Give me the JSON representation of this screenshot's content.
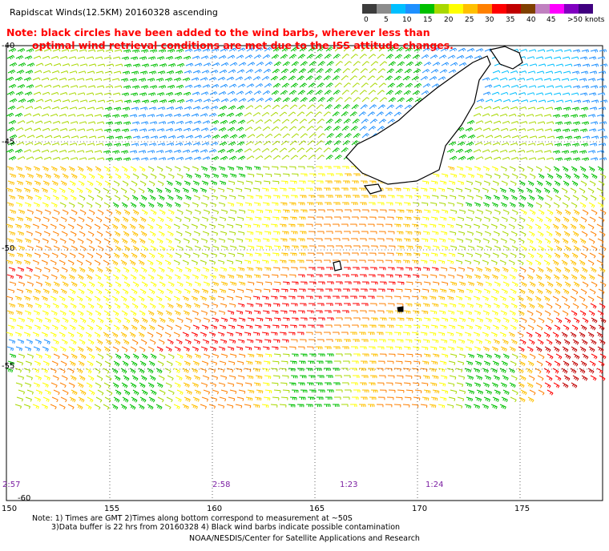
{
  "title": "Rapidscat Winds(12.5KM) 20160328 ascending",
  "note": {
    "line1": "Note: black circles have been added to the wind barbs, wherever less than",
    "line2": "optimal wind retrieval conditions are met due to the ISS attitude changes."
  },
  "scale": {
    "labels": [
      "0",
      "5",
      "10",
      "15",
      "20",
      "25",
      "30",
      "35",
      "40",
      "45",
      ">50 knots"
    ],
    "colors": [
      "#3c3c3c",
      "#8c8c8c",
      "#00bfff",
      "#1e90ff",
      "#00c000",
      "#a8d800",
      "#ffff00",
      "#ffc000",
      "#ff8000",
      "#ff0000",
      "#c00000",
      "#804000",
      "#c080c0",
      "#ff00ff",
      "#8000c0",
      "#400080"
    ]
  },
  "axes": {
    "x_labels": [
      "150",
      "155",
      "160",
      "165",
      "170",
      "175"
    ],
    "y_labels": [
      "-40",
      "-45",
      "-50",
      "-55",
      "-60"
    ]
  },
  "times": [
    "2:57",
    "2:58",
    "1:23",
    "1:24"
  ],
  "footer": {
    "line1": "Note: 1) Times are GMT 2)Times along bottom correspond to measurement at ~50S",
    "line2": "3)Data buffer is 22 hrs from 20160328 4) Black wind barbs indicate possible contamination",
    "credit": "NOAA/NESDIS/Center for Satellite Applications and Research"
  }
}
